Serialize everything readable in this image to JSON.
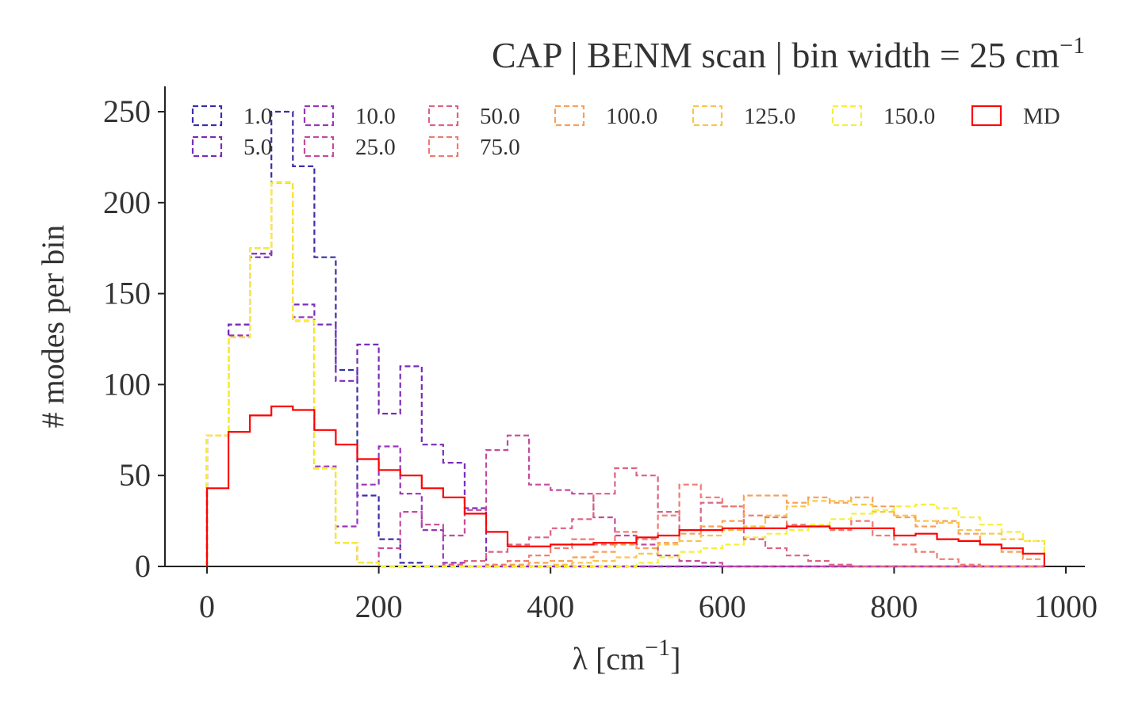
{
  "chart_data": {
    "type": "histogram",
    "title": "CAP | BENM scan | bin width = 25 cm⁻¹",
    "xlabel": "λ [cm⁻¹]",
    "ylabel": "# modes per bin",
    "bin_width": 25,
    "bin_edges_start": 0,
    "bin_count": 39,
    "xlim": [
      -50,
      1020
    ],
    "ylim": [
      0,
      265
    ],
    "xticks": [
      0,
      200,
      400,
      600,
      800,
      1000
    ],
    "yticks": [
      0,
      50,
      100,
      150,
      200,
      250
    ],
    "grid": false,
    "legend": {
      "placement": "top",
      "columns": 7
    },
    "series": [
      {
        "name": "1.0",
        "color": "#3a2ea8",
        "style": "dashed",
        "values": [
          72,
          133,
          172,
          250,
          220,
          170,
          108,
          39,
          15,
          2,
          0,
          0,
          0,
          0,
          0,
          0,
          0,
          0,
          0,
          0,
          0,
          0,
          0,
          0,
          0,
          0,
          0,
          0,
          0,
          0,
          0,
          0,
          0,
          0,
          0,
          0,
          0,
          0,
          0
        ]
      },
      {
        "name": "5.0",
        "color": "#7a2bb8",
        "style": "dashed",
        "values": [
          72,
          133,
          170,
          211,
          144,
          133,
          102,
          122,
          84,
          110,
          67,
          57,
          32,
          0,
          0,
          0,
          0,
          0,
          0,
          0,
          0,
          0,
          0,
          0,
          0,
          0,
          0,
          0,
          0,
          0,
          0,
          0,
          0,
          0,
          0,
          0,
          0,
          0,
          0
        ]
      },
      {
        "name": "10.0",
        "color": "#9a34b8",
        "style": "dashed",
        "values": [
          72,
          127,
          172,
          211,
          137,
          55,
          22,
          45,
          66,
          40,
          20,
          2,
          0,
          0,
          0,
          0,
          0,
          0,
          0,
          0,
          0,
          0,
          0,
          0,
          0,
          0,
          0,
          0,
          0,
          0,
          0,
          0,
          0,
          0,
          0,
          0,
          0,
          0,
          0
        ]
      },
      {
        "name": "25.0",
        "color": "#c44a9e",
        "style": "dashed",
        "values": [
          72,
          126,
          175,
          211,
          135,
          54,
          13,
          2,
          10,
          30,
          23,
          17,
          31,
          64,
          72,
          45,
          42,
          40,
          27,
          17,
          12,
          6,
          3,
          2,
          0,
          0,
          0,
          0,
          0,
          0,
          0,
          0,
          0,
          0,
          0,
          0,
          0,
          0,
          0
        ]
      },
      {
        "name": "50.0",
        "color": "#dd6282",
        "style": "dashed",
        "values": [
          72,
          126,
          175,
          211,
          135,
          54,
          13,
          2,
          0,
          0,
          0,
          1,
          3,
          8,
          12,
          16,
          21,
          26,
          40,
          54,
          50,
          30,
          20,
          35,
          33,
          15,
          10,
          6,
          3,
          1,
          0,
          0,
          0,
          0,
          0,
          0,
          0,
          0,
          0
        ]
      },
      {
        "name": "75.0",
        "color": "#ee7b70",
        "style": "dashed",
        "values": [
          72,
          126,
          175,
          211,
          135,
          54,
          13,
          2,
          0,
          0,
          0,
          0,
          0,
          1,
          3,
          6,
          10,
          15,
          12,
          19,
          15,
          28,
          45,
          38,
          33,
          28,
          27,
          23,
          22,
          20,
          25,
          17,
          12,
          8,
          4,
          1,
          0,
          0,
          0
        ]
      },
      {
        "name": "100.0",
        "color": "#f7a05a",
        "style": "dashed",
        "values": [
          72,
          126,
          175,
          211,
          135,
          54,
          13,
          2,
          0,
          0,
          0,
          0,
          0,
          0,
          1,
          2,
          3,
          5,
          8,
          12,
          10,
          13,
          18,
          22,
          25,
          39,
          39,
          35,
          38,
          35,
          38,
          33,
          27,
          22,
          25,
          18,
          12,
          8,
          4
        ]
      },
      {
        "name": "125.0",
        "color": "#fbc54a",
        "style": "dashed",
        "values": [
          72,
          126,
          175,
          211,
          135,
          54,
          13,
          2,
          0,
          0,
          0,
          0,
          0,
          0,
          0,
          0,
          1,
          2,
          3,
          5,
          7,
          12,
          14,
          17,
          20,
          22,
          28,
          33,
          36,
          36,
          34,
          30,
          28,
          25,
          24,
          20,
          18,
          15,
          14
        ]
      },
      {
        "name": "150.0",
        "color": "#f6ef3a",
        "style": "dashed",
        "values": [
          72,
          126,
          175,
          211,
          135,
          54,
          13,
          2,
          0,
          0,
          0,
          0,
          0,
          0,
          0,
          0,
          0,
          0,
          0,
          0,
          2,
          5,
          8,
          10,
          12,
          16,
          18,
          20,
          23,
          26,
          29,
          31,
          33,
          34,
          32,
          27,
          23,
          19,
          14
        ]
      },
      {
        "name": "MD",
        "color": "#ff0000",
        "style": "solid",
        "values": [
          43,
          74,
          83,
          88,
          86,
          75,
          67,
          59,
          53,
          50,
          43,
          38,
          29,
          19,
          11,
          11,
          12,
          12,
          13,
          13,
          16,
          17,
          20,
          20,
          21,
          21,
          21,
          22,
          22,
          21,
          21,
          21,
          17,
          18,
          15,
          14,
          12,
          10,
          7
        ]
      }
    ]
  }
}
